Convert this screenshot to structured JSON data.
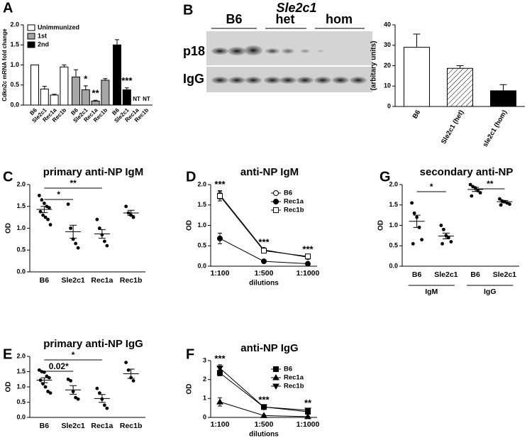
{
  "chart_data": [
    {
      "panel": "A",
      "type": "grouped_bar",
      "ylabel": "Cdkn2c mRNA fold change",
      "categories": [
        "B6",
        "Sle2c1",
        "Rec1a",
        "Rec1b"
      ],
      "series": [
        {
          "name": "Unimmunized",
          "color": "#ffffff",
          "values": [
            1.0,
            0.4,
            0.25,
            0.95
          ],
          "errors": [
            0,
            0.07,
            0.02,
            0.05
          ]
        },
        {
          "name": "1st",
          "color": "#a6a6a6",
          "values": [
            0.7,
            0.38,
            0.1,
            0.62
          ],
          "errors": [
            0.18,
            0.1,
            0.02,
            0.04
          ]
        },
        {
          "name": "2nd",
          "color": "#000000",
          "values": [
            1.5,
            0.38,
            null,
            null
          ],
          "errors": [
            0.13,
            0.05,
            null,
            null
          ]
        }
      ],
      "annotations": [
        {
          "text": "*",
          "series": 1,
          "category": 1
        },
        {
          "text": "**",
          "series": 1,
          "category": 2
        },
        {
          "text": "***",
          "series": 2,
          "category": 1
        },
        {
          "text": "NT",
          "series": 2,
          "category": 2
        },
        {
          "text": "NT",
          "series": 2,
          "category": 3
        }
      ],
      "ylim": [
        0,
        2
      ],
      "yticks": [
        {
          "value": 0,
          "label": "0.0"
        },
        {
          "value": 0.5,
          "label": "0.5"
        },
        {
          "value": 1,
          "label": "1.0"
        },
        {
          "value": 1.5,
          "label": "1.5"
        },
        {
          "value": 2,
          "label": "2.0"
        }
      ]
    },
    {
      "type": "bar",
      "ylabel": "(arbitary units)",
      "categories": [
        "B6",
        "Sle2c1 (het)",
        "sle2c1 (hom)"
      ],
      "values": [
        29,
        18.7,
        7.7
      ],
      "errors": [
        6.5,
        1.3,
        3
      ],
      "fills": [
        "#ffffff",
        "hatch",
        "#000000"
      ],
      "ylim": [
        0,
        40
      ],
      "yticks": [
        0,
        10,
        20,
        30,
        40
      ]
    },
    {
      "panel": "C",
      "type": "dot",
      "title": "primary anti-NP IgM",
      "ylabel": "OD",
      "categories": [
        "B6",
        "Sle2c1",
        "Rec1a",
        "Rec1b"
      ],
      "points": [
        [
          1.75,
          1.65,
          1.57,
          1.5,
          1.47,
          1.38,
          1.3,
          1.25,
          1.2,
          1.08
        ],
        [
          1.55,
          1.0,
          0.75,
          0.65,
          0.55
        ],
        [
          1.2,
          1.0,
          0.85,
          0.7,
          0.6
        ],
        [
          1.5,
          1.35,
          1.3,
          1.25
        ]
      ],
      "means": [
        1.43,
        0.92,
        0.87,
        1.35
      ],
      "sem": [
        0.07,
        0.15,
        0.1,
        0.06
      ],
      "brackets": [
        {
          "from": 0,
          "to": 1,
          "label": "*"
        },
        {
          "from": 0,
          "to": 2,
          "label": "**"
        }
      ],
      "ylim": [
        0,
        2
      ],
      "yticks": [
        {
          "value": 0,
          "label": "0.0"
        },
        {
          "value": 0.5,
          "label": "0.5"
        },
        {
          "value": 1,
          "label": "1.0"
        },
        {
          "value": 1.5,
          "label": "1.5"
        },
        {
          "value": 2,
          "label": "2.0"
        }
      ]
    },
    {
      "panel": "D",
      "type": "line",
      "title": "anti-NP IgM",
      "ylabel": "OD",
      "xlabel": "dilutions",
      "categories": [
        "1:100",
        "1:500",
        "1:1000"
      ],
      "series": [
        {
          "name": "B6",
          "marker": "open-circle",
          "values": [
            1.75,
            0.4,
            0.22
          ],
          "errors": [
            0.1,
            0.03,
            0.02
          ]
        },
        {
          "name": "Rec1a",
          "marker": "filled-circle",
          "values": [
            0.68,
            0.12,
            0.06
          ],
          "errors": [
            0.13,
            0.02,
            0.01
          ]
        },
        {
          "name": "Rec1b",
          "marker": "open-square",
          "values": [
            1.72,
            0.38,
            0.24
          ],
          "errors": [
            0.12,
            0.03,
            0.02
          ]
        }
      ],
      "annotations": [
        "***",
        "***",
        "***"
      ],
      "ylim": [
        0,
        2
      ],
      "yticks": [
        {
          "value": 0,
          "label": "0.0"
        },
        {
          "value": 0.5,
          "label": "0.5"
        },
        {
          "value": 1,
          "label": "1.0"
        },
        {
          "value": 1.5,
          "label": "1.5"
        },
        {
          "value": 2,
          "label": "2.0"
        }
      ]
    },
    {
      "panel": "G",
      "type": "dot",
      "title": "secondary anti-NP",
      "ylabel": "OD",
      "categories": [
        "B6",
        "Sle2c1",
        "B6",
        "Sle2c1"
      ],
      "groups": [
        "IgM",
        "IgG"
      ],
      "points": [
        [
          1.55,
          1.3,
          1.2,
          0.95,
          0.65,
          0.55
        ],
        [
          1.0,
          0.9,
          0.75,
          0.7,
          0.6,
          0.55
        ],
        [
          2.0,
          1.95,
          1.92,
          1.85,
          1.8,
          1.72
        ],
        [
          1.65,
          1.6,
          1.58,
          1.55,
          1.52,
          1.5
        ]
      ],
      "means": [
        1.1,
        0.74,
        1.88,
        1.58
      ],
      "sem": [
        0.15,
        0.07,
        0.05,
        0.03
      ],
      "brackets": [
        {
          "from": 0,
          "to": 1,
          "label": "*"
        },
        {
          "from": 2,
          "to": 3,
          "label": "**"
        }
      ],
      "ylim": [
        0,
        2
      ],
      "yticks": [
        {
          "value": 0,
          "label": "0.0"
        },
        {
          "value": 0.5,
          "label": "0.5"
        },
        {
          "value": 1,
          "label": "1.0"
        },
        {
          "value": 1.5,
          "label": "1.5"
        },
        {
          "value": 2,
          "label": "2.0"
        }
      ]
    },
    {
      "panel": "E",
      "type": "dot",
      "title": "primary anti-NP IgG",
      "ylabel": "OD",
      "categories": [
        "B6",
        "Sle2c1",
        "Rec1a",
        "Rec1b"
      ],
      "points": [
        [
          1.55,
          1.5,
          1.48,
          1.35,
          1.3,
          1.22,
          1.1,
          1.0,
          0.85,
          0.8
        ],
        [
          1.25,
          1.2,
          0.85,
          0.65,
          0.6
        ],
        [
          0.95,
          0.8,
          0.6,
          0.4,
          0.3
        ],
        [
          1.8,
          1.55,
          1.3,
          1.2
        ]
      ],
      "means": [
        1.22,
        0.9,
        0.62,
        1.43
      ],
      "sem": [
        0.08,
        0.14,
        0.13,
        0.15
      ],
      "brackets": [
        {
          "from": 0,
          "to": 1,
          "label": "0.02*"
        },
        {
          "from": 0,
          "to": 2,
          "label": "*"
        }
      ],
      "ylim": [
        0,
        2
      ],
      "yticks": [
        {
          "value": 0,
          "label": "0.0"
        },
        {
          "value": 0.5,
          "label": "0.5"
        },
        {
          "value": 1,
          "label": "1.0"
        },
        {
          "value": 1.5,
          "label": "1.5"
        },
        {
          "value": 2,
          "label": "2.0"
        }
      ]
    },
    {
      "panel": "F",
      "type": "line",
      "title": "anti-NP IgG",
      "ylabel": "OD",
      "xlabel": "dilutions",
      "categories": [
        "1:100",
        "1:500",
        "1:1000"
      ],
      "series": [
        {
          "name": "B6",
          "marker": "filled-square",
          "values": [
            2.35,
            0.55,
            0.3
          ],
          "errors": [
            0.15,
            0.05,
            0.03
          ]
        },
        {
          "name": "Rec1a",
          "marker": "triangle-up",
          "values": [
            0.82,
            0.1,
            0.04
          ],
          "errors": [
            0.22,
            0.02,
            0.01
          ]
        },
        {
          "name": "Rec1b",
          "marker": "triangle-down",
          "values": [
            2.6,
            0.55,
            0.38
          ],
          "errors": [
            0.18,
            0.05,
            0.05
          ]
        }
      ],
      "annotations": [
        "***",
        "***",
        "**"
      ],
      "ylim": [
        0,
        3
      ],
      "yticks": [
        0,
        1,
        2,
        3
      ]
    }
  ],
  "blot": {
    "panel": "B",
    "title": "Sle2c1",
    "groups": [
      "B6",
      "het",
      "hom"
    ],
    "rows": [
      "p18",
      "IgG"
    ]
  }
}
